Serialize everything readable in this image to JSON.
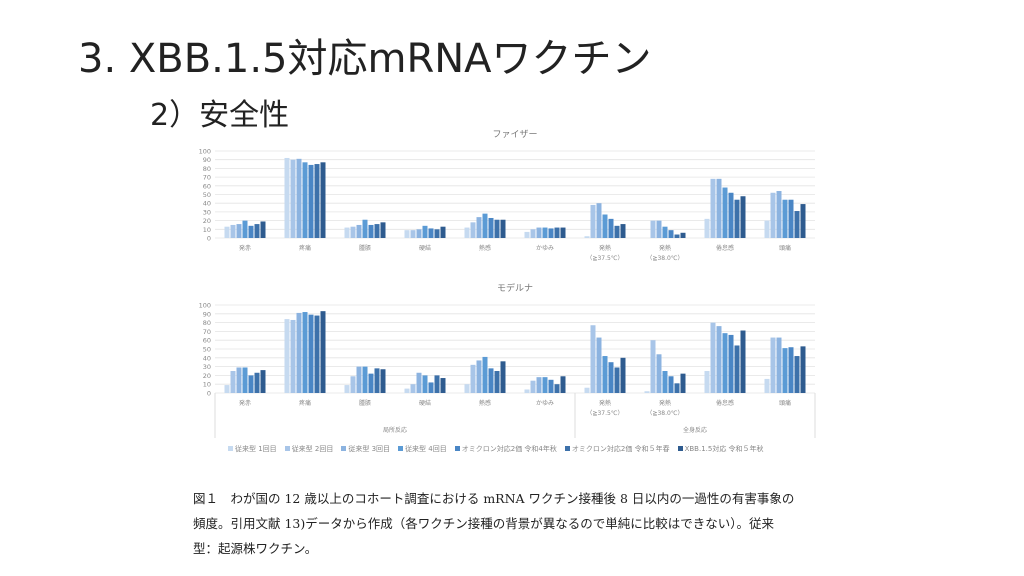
{
  "slide": {
    "title": "3.  XBB.1.5対応mRNAワクチン",
    "subtitle": "2）安全性"
  },
  "caption": [
    "図１　わが国の 12 歳以上のコホート調査における mRNA ワクチン接種後 8 日以内の一過性の有害事象の",
    "頻度。引用文献 13)データから作成（各ワクチン接種の背景が異なるので単純に比較はできない）。従来",
    "型：起源株ワクチン。"
  ],
  "colors": [
    "#c6daf0",
    "#a8c5e8",
    "#8cb3e0",
    "#5b9bd5",
    "#4a86c5",
    "#3d71aa",
    "#2e5b8f"
  ],
  "chart_data": [
    {
      "type": "bar",
      "title": "ファイザー",
      "ylim": [
        0,
        100
      ],
      "yticks": [
        "0",
        "10",
        "20",
        "30",
        "40",
        "50",
        "60",
        "70",
        "80",
        "90",
        "100"
      ],
      "categories": [
        "発赤",
        "疼痛",
        "腫脹",
        "硬結",
        "熱感",
        "かゆみ",
        "発熱\n（≧37.5℃）",
        "発熱\n（≧38.0℃）",
        "倦怠感",
        "頭痛"
      ],
      "groups": [],
      "series": [
        {
          "name": "従来型 1回目",
          "values": [
            13,
            92,
            12,
            9,
            12,
            7,
            2,
            0,
            22,
            20
          ]
        },
        {
          "name": "従来型 2回目",
          "values": [
            15,
            90,
            13,
            9,
            18,
            10,
            38,
            20,
            68,
            52
          ]
        },
        {
          "name": "従来型 3回目",
          "values": [
            16,
            91,
            15,
            10,
            24,
            12,
            40,
            20,
            68,
            54
          ]
        },
        {
          "name": "従来型 4回目",
          "values": [
            20,
            87,
            21,
            14,
            28,
            12,
            27,
            13,
            58,
            44
          ]
        },
        {
          "name": "オミクロン対応2価 令和4年秋",
          "values": [
            14,
            84,
            15,
            11,
            23,
            11,
            22,
            9,
            52,
            44
          ]
        },
        {
          "name": "オミクロン対応2価 令和５年春",
          "values": [
            16,
            85,
            16,
            10,
            21,
            12,
            14,
            4,
            44,
            31
          ]
        },
        {
          "name": "XBB.1.5対応 令和５年秋",
          "values": [
            19,
            87,
            18,
            13,
            21,
            12,
            16,
            6,
            48,
            39
          ]
        }
      ]
    },
    {
      "type": "bar",
      "title": "モデルナ",
      "ylim": [
        0,
        100
      ],
      "yticks": [
        "0",
        "10",
        "20",
        "30",
        "40",
        "50",
        "60",
        "70",
        "80",
        "90",
        "100"
      ],
      "categories": [
        "発赤",
        "疼痛",
        "腫脹",
        "硬結",
        "熱感",
        "かゆみ",
        "発熱\n（≧37.5℃）",
        "発熱\n（≧38.0℃）",
        "倦怠感",
        "頭痛"
      ],
      "groups": [
        "局所反応",
        "全身反応"
      ],
      "series": [
        {
          "name": "従来型 1回目",
          "values": [
            9,
            84,
            9,
            5,
            10,
            4,
            6,
            2,
            25,
            16
          ]
        },
        {
          "name": "従来型 2回目",
          "values": [
            25,
            83,
            19,
            10,
            32,
            14,
            77,
            60,
            80,
            63
          ]
        },
        {
          "name": "従来型 3回目",
          "values": [
            29,
            91,
            30,
            23,
            37,
            18,
            63,
            44,
            76,
            63
          ]
        },
        {
          "name": "従来型 4回目",
          "values": [
            29,
            92,
            30,
            20,
            41,
            18,
            42,
            25,
            68,
            51
          ]
        },
        {
          "name": "オミクロン対応2価 令和4年秋",
          "values": [
            20,
            89,
            22,
            12,
            28,
            15,
            35,
            19,
            66,
            52
          ]
        },
        {
          "name": "オミクロン対応2価 令和５年春",
          "values": [
            23,
            88,
            28,
            20,
            25,
            10,
            29,
            11,
            54,
            42
          ]
        },
        {
          "name": "XBB.1.5対応 令和５年秋",
          "values": [
            26,
            93,
            27,
            17,
            36,
            19,
            40,
            22,
            71,
            53
          ]
        }
      ]
    }
  ]
}
